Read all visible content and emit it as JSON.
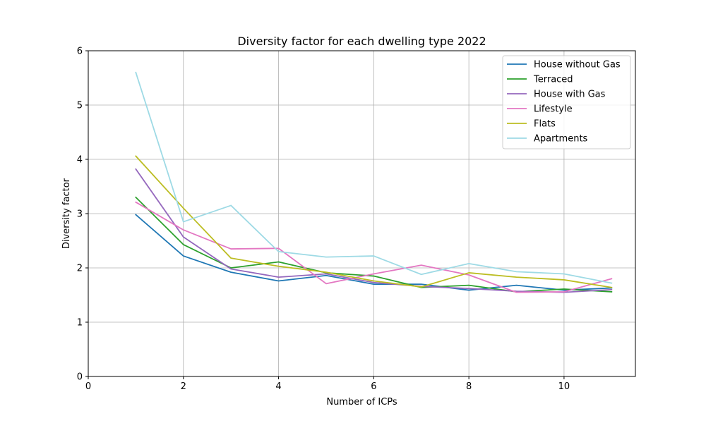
{
  "chart_data": {
    "type": "line",
    "title": "Diversity factor for each dwelling type 2022",
    "xlabel": "Number of ICPs",
    "ylabel": "Diversity factor",
    "xlim": [
      0,
      11.5
    ],
    "ylim": [
      0,
      6
    ],
    "xticks": [
      0,
      2,
      4,
      6,
      8,
      10
    ],
    "yticks": [
      0,
      1,
      2,
      3,
      4,
      5,
      6
    ],
    "grid": true,
    "legend_position": "top-right",
    "x": [
      1,
      2,
      3,
      4,
      5,
      6,
      7,
      8,
      9,
      10,
      11
    ],
    "series": [
      {
        "name": "House without Gas",
        "color": "#1f77b4",
        "values": [
          2.98,
          2.22,
          1.92,
          1.76,
          1.86,
          1.7,
          1.7,
          1.59,
          1.68,
          1.59,
          1.63
        ]
      },
      {
        "name": "Terraced",
        "color": "#2ca02c",
        "values": [
          3.3,
          2.43,
          2.0,
          2.11,
          1.91,
          1.85,
          1.64,
          1.68,
          1.56,
          1.61,
          1.56
        ]
      },
      {
        "name": "House with Gas",
        "color": "#9467bd",
        "values": [
          3.82,
          2.57,
          1.98,
          1.83,
          1.89,
          1.73,
          1.66,
          1.62,
          1.57,
          1.55,
          1.6
        ]
      },
      {
        "name": "Lifestyle",
        "color": "#e377c2",
        "values": [
          3.21,
          2.7,
          2.35,
          2.36,
          1.71,
          1.89,
          2.05,
          1.87,
          1.55,
          1.56,
          1.8
        ]
      },
      {
        "name": "Flats",
        "color": "#bcbd22",
        "values": [
          4.06,
          3.1,
          2.18,
          2.03,
          1.92,
          1.76,
          1.65,
          1.91,
          1.83,
          1.78,
          1.64
        ]
      },
      {
        "name": "Apartments",
        "color": "#9edae5",
        "values": [
          5.6,
          2.85,
          3.15,
          2.3,
          2.2,
          2.22,
          1.88,
          2.08,
          1.93,
          1.89,
          1.72
        ]
      }
    ]
  }
}
